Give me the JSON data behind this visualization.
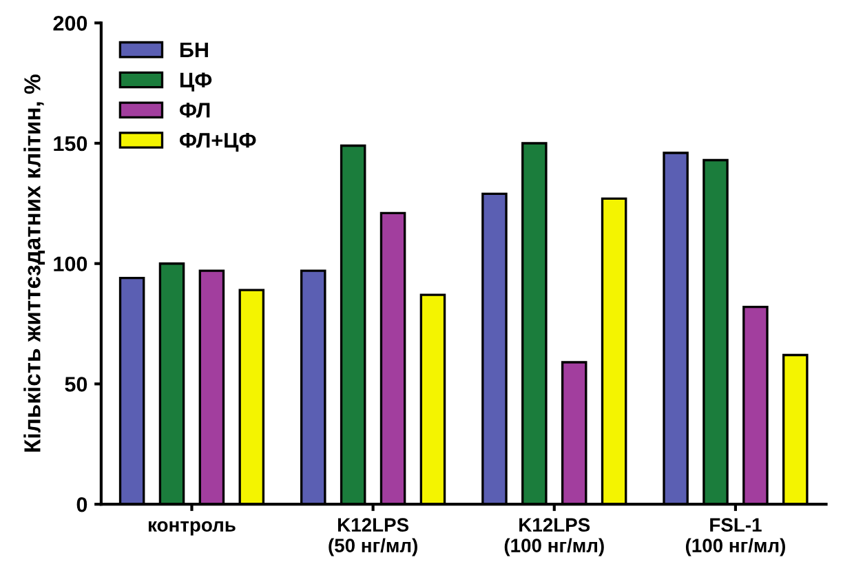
{
  "chart_data": {
    "type": "bar",
    "ylabel": "Кількість життєздатних клітин, %",
    "categories": [
      "контроль",
      "K12LPS\n(50 нг/мл)",
      "K12LPS\n(100 нг/мл)",
      "FSL-1\n(100 нг/мл)"
    ],
    "series": [
      {
        "name": "БН",
        "color": "#5b5fb3",
        "values": [
          94,
          97,
          129,
          146
        ]
      },
      {
        "name": "ЦФ",
        "color": "#1b7d3c",
        "values": [
          100,
          149,
          150,
          143
        ]
      },
      {
        "name": "ФЛ",
        "color": "#a23e9e",
        "values": [
          97,
          121,
          59,
          82
        ]
      },
      {
        "name": "ФЛ+ЦФ",
        "color": "#f4f400",
        "values": [
          89,
          87,
          127,
          62
        ]
      }
    ],
    "ylim": [
      0,
      200
    ],
    "yticks": [
      0,
      50,
      100,
      150,
      200
    ],
    "grid": false,
    "legend": "top left"
  }
}
